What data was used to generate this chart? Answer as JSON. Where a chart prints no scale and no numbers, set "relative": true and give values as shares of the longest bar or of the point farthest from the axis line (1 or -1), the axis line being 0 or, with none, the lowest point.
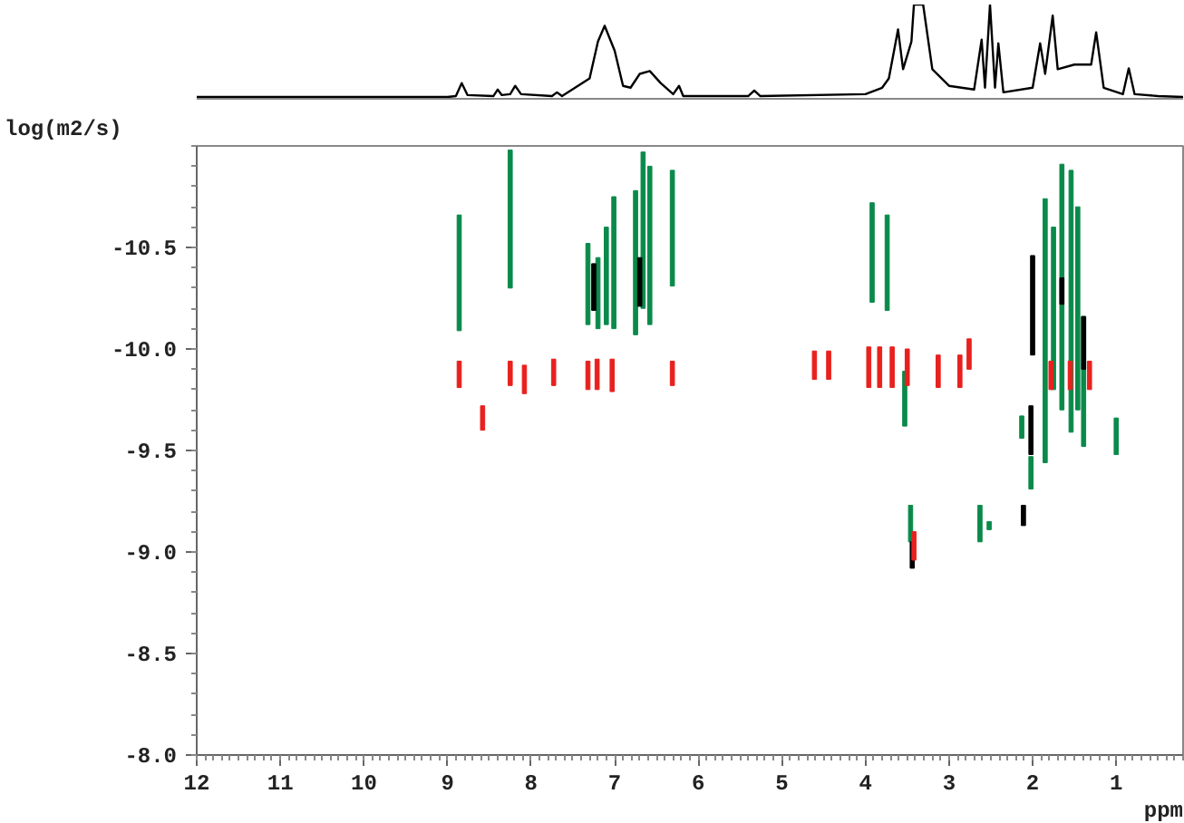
{
  "chart_data": [
    {
      "type": "line",
      "relative": true,
      "tick_labels": false,
      "xlim": [
        12.0,
        0.2
      ],
      "series": [
        {
          "color": "#000000",
          "x": [
            12.0,
            9.0,
            8.9,
            8.83,
            8.76,
            8.45,
            8.4,
            8.35,
            8.25,
            8.19,
            8.12,
            7.75,
            7.69,
            7.63,
            7.3,
            7.2,
            7.12,
            7.0,
            6.9,
            6.81,
            6.7,
            6.58,
            6.45,
            6.3,
            6.23,
            6.18,
            5.4,
            5.33,
            5.26,
            4.0,
            3.8,
            3.72,
            3.61,
            3.55,
            3.45,
            3.42,
            3.31,
            3.2,
            3.0,
            2.7,
            2.61,
            2.57,
            2.51,
            2.45,
            2.41,
            2.35,
            2.0,
            1.91,
            1.85,
            1.76,
            1.7,
            1.5,
            1.3,
            1.24,
            1.15,
            0.92,
            0.85,
            0.78,
            0.5,
            0.2
          ],
          "values": [
            0,
            0,
            0.01,
            0.15,
            0.02,
            0.01,
            0.08,
            0.02,
            0.03,
            0.12,
            0.03,
            0.01,
            0.05,
            0.01,
            0.2,
            0.6,
            0.77,
            0.5,
            0.12,
            0.1,
            0.25,
            0.28,
            0.15,
            0.03,
            0.12,
            0.01,
            0.01,
            0.07,
            0.01,
            0.03,
            0.1,
            0.2,
            0.73,
            0.3,
            0.6,
            1.0,
            1.0,
            0.3,
            0.12,
            0.08,
            0.62,
            0.1,
            1.0,
            0.1,
            0.58,
            0.05,
            0.1,
            0.58,
            0.25,
            0.88,
            0.3,
            0.35,
            0.35,
            0.7,
            0.1,
            0.03,
            0.31,
            0.03,
            0.01,
            0
          ]
        }
      ]
    },
    {
      "type": "bar",
      "xlabel": "ppm",
      "ylabel": "log(m2/s)",
      "xlim": [
        12.0,
        0.2
      ],
      "ylim": [
        -8.0,
        -11.0
      ],
      "xticks": [
        12,
        11,
        10,
        9,
        8,
        7,
        6,
        5,
        4,
        3,
        2,
        1
      ],
      "yticks": [
        {
          "value": -10.5,
          "label": "-10.5"
        },
        {
          "value": -10.0,
          "label": "-10.0"
        },
        {
          "value": -9.5,
          "label": "-9.5"
        },
        {
          "value": -9.0,
          "label": "-9.0"
        },
        {
          "value": -8.5,
          "label": "-8.5"
        },
        {
          "value": -8.0,
          "label": "-8.0"
        }
      ],
      "series": [
        {
          "color": "#0a8a4a",
          "x": [
            8.86,
            8.25,
            7.32,
            7.2,
            7.1,
            7.01,
            6.75,
            6.66,
            6.58,
            6.31,
            3.92,
            3.74,
            3.53,
            3.46,
            2.63,
            2.52,
            2.13,
            2.02,
            1.85,
            1.75,
            1.65,
            1.54,
            1.46,
            1.39,
            1.0
          ],
          "base": [
            -10.66,
            -10.98,
            -10.52,
            -10.45,
            -10.6,
            -10.75,
            -10.78,
            -10.97,
            -10.9,
            -10.88,
            -10.72,
            -10.66,
            -9.89,
            -9.23,
            -9.23,
            -9.15,
            -9.67,
            -9.47,
            -10.74,
            -10.6,
            -10.91,
            -10.88,
            -10.7,
            -10.16,
            -9.66
          ],
          "values": [
            0.57,
            0.68,
            0.4,
            0.35,
            0.48,
            0.65,
            0.71,
            0.77,
            0.78,
            0.57,
            0.49,
            0.47,
            0.27,
            0.18,
            0.18,
            0.04,
            0.11,
            0.16,
            1.3,
            0.8,
            1.21,
            1.29,
            1.0,
            0.64,
            0.18
          ]
        },
        {
          "color": "#000000",
          "x": [
            7.25,
            6.7,
            3.44,
            2.11,
            2.02,
            2.0,
            1.65,
            1.39
          ],
          "base": [
            -10.42,
            -10.45,
            -9.05,
            -9.23,
            -9.72,
            -10.46,
            -10.35,
            -10.16
          ],
          "values": [
            0.23,
            0.24,
            0.13,
            0.1,
            0.24,
            0.49,
            0.13,
            0.26
          ]
        },
        {
          "color": "#e8211e",
          "x": [
            8.86,
            8.58,
            8.25,
            8.08,
            7.73,
            7.32,
            7.21,
            7.03,
            6.31,
            4.61,
            4.44,
            3.96,
            3.83,
            3.68,
            3.5,
            3.42,
            3.13,
            2.87,
            2.76,
            1.78,
            1.55,
            1.32
          ],
          "base": [
            -9.94,
            -9.72,
            -9.94,
            -9.92,
            -9.95,
            -9.94,
            -9.95,
            -9.95,
            -9.94,
            -9.99,
            -9.99,
            -10.01,
            -10.01,
            -10.01,
            -10.0,
            -9.1,
            -9.97,
            -9.97,
            -10.05,
            -9.94,
            -9.94,
            -9.94
          ],
          "values": [
            0.13,
            0.12,
            0.12,
            0.14,
            0.13,
            0.14,
            0.15,
            0.16,
            0.12,
            0.14,
            0.14,
            0.2,
            0.2,
            0.2,
            0.18,
            0.14,
            0.16,
            0.16,
            0.15,
            0.14,
            0.14,
            0.14
          ]
        }
      ]
    }
  ]
}
